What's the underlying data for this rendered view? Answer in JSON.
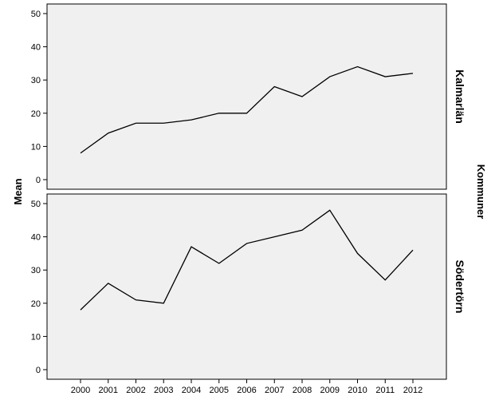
{
  "chart_data": {
    "type": "line",
    "ylabel": "Mean",
    "panel_group_label": "Kommuner",
    "x": [
      "2000",
      "2001",
      "2002",
      "2003",
      "2004",
      "2005",
      "2006",
      "2007",
      "2008",
      "2009",
      "2010",
      "2011",
      "2012"
    ],
    "panels": [
      {
        "name": "Kalmarlän",
        "values": [
          8,
          14,
          17,
          17,
          18,
          20,
          20,
          28,
          25,
          31,
          34,
          31,
          32
        ],
        "yticks": [
          0,
          10,
          20,
          30,
          40,
          50
        ]
      },
      {
        "name": "Södertörn",
        "values": [
          18,
          26,
          21,
          20,
          37,
          32,
          38,
          40,
          42,
          48,
          35,
          27,
          36
        ],
        "yticks": [
          0,
          10,
          20,
          30,
          40,
          50
        ]
      }
    ],
    "ylim": [
      0,
      50
    ],
    "grid": false,
    "colors": {
      "panel_background": "#f0f0f0",
      "line": "#000000"
    }
  }
}
